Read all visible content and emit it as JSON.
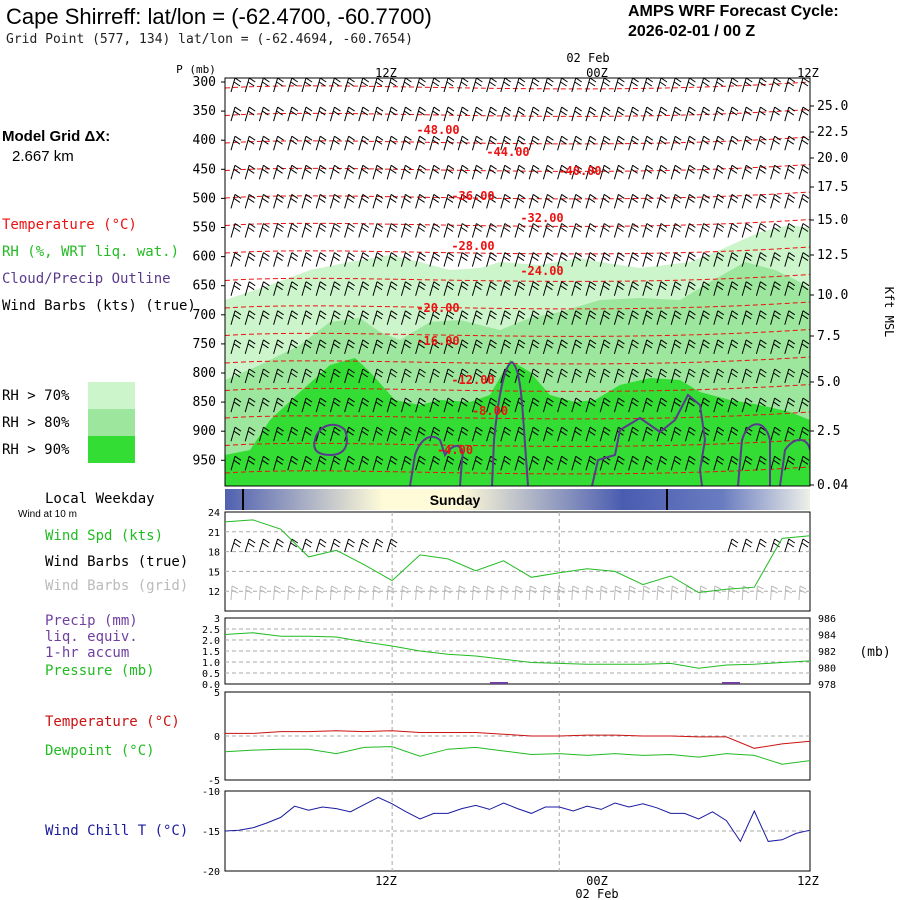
{
  "header": {
    "title": "Cape Shirreff:  lat/lon = (-62.4700, -60.7700)",
    "subtitle": "Grid Point (577, 134) lat/lon = (-62.4694, -60.7654)",
    "cycle_line1": "AMPS WRF Forecast Cycle:",
    "cycle_line2": "2026-02-01 / 00  Z"
  },
  "model_grid": {
    "title": "Model Grid ΔX:",
    "value": "2.667 km"
  },
  "legend": {
    "temperature": "Temperature (°C)",
    "rh": "RH (%, WRT liq. wat.)",
    "cloud": "Cloud/Precip Outline",
    "wind": "Wind Barbs (kts) (true)"
  },
  "rh_scale": [
    {
      "label": "RH > 70%",
      "color": "#ccf5cc"
    },
    {
      "label": "RH > 80%",
      "color": "#9de69d"
    },
    {
      "label": "RH > 90%",
      "color": "#33dd33"
    }
  ],
  "colors": {
    "temperature": "#ee1111",
    "rh_green": "#22bb22",
    "cloud": "#5a3a8c",
    "windchill": "#1a1aa0",
    "precip": "#7040a0"
  },
  "time_axis": {
    "top_date": "02 Feb",
    "ticks": [
      "12Z",
      "00Z",
      "12Z"
    ],
    "bottom_date": "02 Feb",
    "weekday_header": "Local Weekday",
    "weekday": "Sunday"
  },
  "sounding": {
    "pressure_label": "P (mb)",
    "pressure_levels": [
      "300",
      "350",
      "400",
      "450",
      "500",
      "550",
      "600",
      "650",
      "700",
      "750",
      "800",
      "850",
      "900",
      "950"
    ],
    "height_ticks": [
      "25.0",
      "22.5",
      "20.0",
      "17.5",
      "15.0",
      "12.5",
      "10.0",
      "7.5",
      "5.0",
      "2.5",
      "0.04"
    ],
    "height_label": "Kft MSL",
    "isotherm_labels": [
      "-48.00",
      "-44.00",
      "-40.00",
      "-36.00",
      "-32.00",
      "-28.00",
      "-24.00",
      "-20.00",
      "-16.00",
      "-12.00",
      "-8.00",
      "-4.00"
    ]
  },
  "wind_panel": {
    "subheader": "Wind at 10 m",
    "labels": [
      "Wind Spd (kts)",
      "Wind Barbs (true)",
      "Wind Barbs (grid)"
    ],
    "yticks": [
      "24",
      "21",
      "18",
      "15",
      "12"
    ]
  },
  "precip_panel": {
    "labels": [
      "Precip (mm)",
      "liq. equiv.",
      "1-hr accum",
      "Pressure (mb)"
    ],
    "left_ticks": [
      "3",
      "2.5",
      "2.0",
      "1.5",
      "1.0",
      "0.5",
      "0.0"
    ],
    "right_ticks": [
      "986",
      "984",
      "982",
      "980",
      "978"
    ],
    "right_unit": "(mb)"
  },
  "temp_panel": {
    "labels": [
      "Temperature (°C)",
      "Dewpoint (°C)"
    ],
    "yticks": [
      "5",
      "0",
      "-5"
    ]
  },
  "chill_panel": {
    "labels": [
      "Wind Chill T (°C)"
    ],
    "yticks": [
      "-10",
      "-15",
      "-20"
    ]
  },
  "chart_data": [
    {
      "type": "line",
      "title": "Wind Spd (kts)",
      "x_hours": [
        0,
        2,
        4,
        6,
        8,
        10,
        12,
        14,
        16,
        18,
        20,
        22,
        24,
        26,
        28,
        30,
        32,
        34,
        36,
        38,
        40,
        42
      ],
      "xlim": [
        0,
        42
      ],
      "ylim": [
        9,
        24
      ],
      "series": [
        {
          "name": "Wind Spd (kts)",
          "values": [
            22.5,
            22.8,
            21.4,
            17.2,
            18.2,
            16.0,
            13.6,
            17.5,
            16.9,
            15.1,
            16.6,
            14.1,
            14.8,
            15.4,
            15.0,
            13.0,
            14.3,
            11.8,
            12.3,
            12.6,
            20.0,
            20.4
          ]
        }
      ]
    },
    {
      "type": "line",
      "title": "Pressure (mb)",
      "x_hours": [
        0,
        2,
        4,
        6,
        8,
        10,
        12,
        14,
        16,
        18,
        20,
        22,
        24,
        26,
        28,
        30,
        32,
        34,
        36,
        38,
        40,
        42
      ],
      "ylim": [
        978,
        986
      ],
      "series": [
        {
          "name": "Pressure (mb)",
          "values": [
            984.0,
            984.2,
            983.8,
            983.8,
            983.7,
            983.1,
            982.6,
            982.0,
            981.6,
            981.4,
            981.0,
            980.6,
            980.5,
            980.4,
            980.4,
            980.4,
            980.5,
            979.9,
            980.3,
            980.4,
            980.6,
            980.8
          ]
        }
      ]
    },
    {
      "type": "line",
      "title": "Temperature / Dewpoint (°C)",
      "x_hours": [
        0,
        2,
        4,
        6,
        8,
        10,
        12,
        14,
        16,
        18,
        20,
        22,
        24,
        26,
        28,
        30,
        32,
        34,
        36,
        38,
        40,
        42
      ],
      "ylim": [
        -5,
        5
      ],
      "series": [
        {
          "name": "Temperature (°C)",
          "values": [
            0.3,
            0.3,
            0.5,
            0.5,
            0.6,
            0.5,
            0.6,
            0.4,
            0.4,
            0.4,
            0.2,
            0.0,
            0.0,
            0.1,
            0.1,
            0.0,
            0.0,
            -0.1,
            -0.1,
            -1.4,
            -0.9,
            -0.6
          ]
        },
        {
          "name": "Dewpoint (°C)",
          "values": [
            -1.8,
            -1.6,
            -1.5,
            -1.5,
            -2.0,
            -1.3,
            -1.2,
            -2.3,
            -1.5,
            -1.3,
            -1.7,
            -2.1,
            -2.0,
            -2.2,
            -2.0,
            -2.2,
            -2.1,
            -2.4,
            -2.0,
            -2.2,
            -3.2,
            -2.8
          ]
        }
      ]
    },
    {
      "type": "line",
      "title": "Wind Chill T (°C)",
      "x_hours": [
        0,
        1,
        2,
        3,
        4,
        5,
        6,
        7,
        8,
        9,
        10,
        11,
        12,
        13,
        14,
        15,
        16,
        17,
        18,
        19,
        20,
        21,
        22,
        23,
        24,
        25,
        26,
        27,
        28,
        29,
        30,
        31,
        32,
        33,
        34,
        35,
        36,
        37,
        38,
        39,
        40,
        41,
        42
      ],
      "ylim": [
        -20,
        -10
      ],
      "series": [
        {
          "name": "Wind Chill T (°C)",
          "values": [
            -15.0,
            -14.9,
            -14.6,
            -14.0,
            -13.3,
            -11.9,
            -12.4,
            -12.0,
            -12.2,
            -12.6,
            -11.7,
            -10.8,
            -11.6,
            -12.6,
            -13.5,
            -12.8,
            -12.8,
            -12.2,
            -11.8,
            -12.3,
            -11.5,
            -12.2,
            -12.8,
            -12.0,
            -12.0,
            -12.5,
            -11.9,
            -12.3,
            -11.5,
            -12.0,
            -11.6,
            -12.1,
            -12.8,
            -12.8,
            -13.5,
            -12.6,
            -13.7,
            -16.3,
            -12.5,
            -16.3,
            -16.1,
            -15.3,
            -14.9
          ]
        }
      ]
    }
  ]
}
